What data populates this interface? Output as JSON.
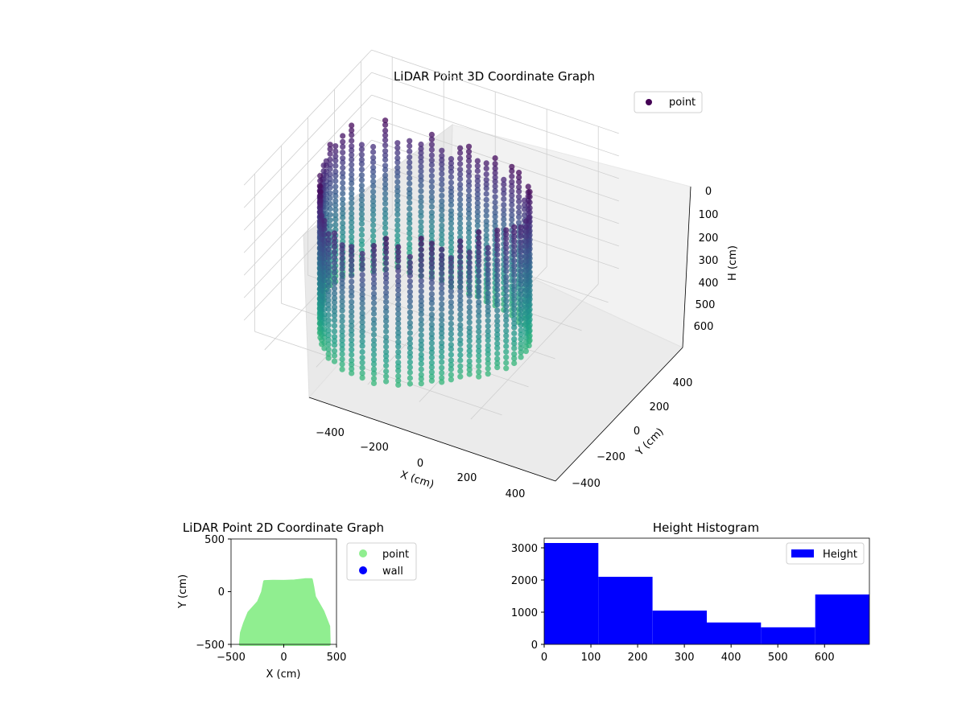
{
  "chart_data": [
    {
      "type": "scatter",
      "title": "LiDAR Point 3D Coordinate Graph",
      "xlabel": "X (cm)",
      "ylabel": "Y (cm)",
      "zlabel": "H (cm)",
      "x_ticks": [
        "−400",
        "−200",
        "0",
        "200",
        "400"
      ],
      "y_ticks": [
        "−400",
        "−200",
        "0",
        "200",
        "400"
      ],
      "z_ticks": [
        "0",
        "100",
        "200",
        "300",
        "400",
        "500",
        "600"
      ],
      "xlim": [
        -480,
        480
      ],
      "ylim": [
        -480,
        480
      ],
      "zlim": [
        0,
        700
      ],
      "z_inverted": true,
      "colormap": "viridis",
      "series": [
        {
          "name": "point",
          "color": "#440154"
        }
      ],
      "legend_position": "top-right",
      "grid": true
    },
    {
      "type": "scatter",
      "title": "LiDAR Point 2D Coordinate Graph",
      "xlabel": "X (cm)",
      "ylabel": "Y (cm)",
      "x_ticks": [
        "−500",
        "0",
        "500"
      ],
      "y_ticks": [
        "500",
        "0",
        "−500"
      ],
      "xlim": [
        -500,
        500
      ],
      "ylim": [
        -500,
        500
      ],
      "series": [
        {
          "name": "point",
          "color": "#90ee90",
          "outline": [
            [
              -410,
              -500
            ],
            [
              -400,
              -390
            ],
            [
              -370,
              -300
            ],
            [
              -330,
              -200
            ],
            [
              -240,
              -100
            ],
            [
              -200,
              -5
            ],
            [
              -180,
              95
            ],
            [
              -100,
              98
            ],
            [
              0,
              96
            ],
            [
              100,
              100
            ],
            [
              200,
              112
            ],
            [
              260,
              112
            ],
            [
              275,
              40
            ],
            [
              290,
              -50
            ],
            [
              370,
              -190
            ],
            [
              425,
              -330
            ],
            [
              430,
              -500
            ]
          ]
        },
        {
          "name": "wall",
          "color": "#0000ff",
          "points": []
        }
      ],
      "legend_position": "outside-right",
      "grid": false
    },
    {
      "type": "bar",
      "title": "Height Histogram",
      "bin_edges": [
        0,
        116,
        232,
        348,
        464,
        580,
        696
      ],
      "values": [
        3150,
        2100,
        1050,
        680,
        530,
        1550
      ],
      "color": "#0000ff",
      "series": [
        {
          "name": "Height"
        }
      ],
      "x_ticks": [
        "0",
        "100",
        "200",
        "300",
        "400",
        "500",
        "600"
      ],
      "y_ticks": [
        "0",
        "1000",
        "2000",
        "3000"
      ],
      "xlim": [
        0,
        696
      ],
      "ylim": [
        0,
        3300
      ],
      "legend_position": "top-right",
      "grid": false
    }
  ]
}
